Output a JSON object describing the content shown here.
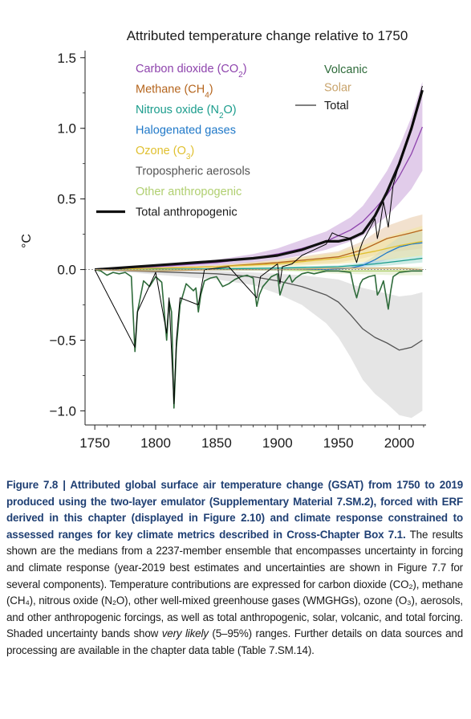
{
  "chart_data": {
    "type": "line",
    "title": "Attributed temperature change relative to 1750",
    "ylabel": "°C",
    "xlabel": "",
    "xlim": [
      1742,
      2022
    ],
    "ylim": [
      -1.1,
      1.55
    ],
    "xticks": [
      "1750",
      "1800",
      "1850",
      "1900",
      "1950",
      "2000"
    ],
    "yticks": [
      "1.5",
      "1.0",
      "0.5",
      "0.0",
      "−0.5",
      "−1.0"
    ],
    "grid": false,
    "legend_placement": "top-left and top-right",
    "series": [
      {
        "name": "Carbon dioxide (CO2)",
        "color": "#8e44ad",
        "band_color": "#c9a3d8",
        "x": [
          1750,
          1800,
          1850,
          1880,
          1900,
          1920,
          1940,
          1960,
          1970,
          1980,
          1990,
          2000,
          2010,
          2019
        ],
        "y": [
          0.0,
          0.02,
          0.05,
          0.08,
          0.11,
          0.15,
          0.2,
          0.28,
          0.34,
          0.43,
          0.53,
          0.66,
          0.82,
          1.01
        ],
        "lo": [
          0.0,
          0.01,
          0.03,
          0.05,
          0.07,
          0.1,
          0.14,
          0.2,
          0.24,
          0.31,
          0.38,
          0.47,
          0.57,
          0.7
        ],
        "hi": [
          0.0,
          0.03,
          0.07,
          0.11,
          0.15,
          0.21,
          0.27,
          0.37,
          0.45,
          0.57,
          0.7,
          0.87,
          1.08,
          1.33
        ]
      },
      {
        "name": "Methane (CH4)",
        "color": "#b5651d",
        "band_color": "#e8c9a6",
        "x": [
          1750,
          1850,
          1900,
          1950,
          1970,
          1980,
          1990,
          2000,
          2010,
          2019
        ],
        "y": [
          0.0,
          0.02,
          0.05,
          0.09,
          0.14,
          0.18,
          0.22,
          0.24,
          0.26,
          0.28
        ],
        "lo": [
          0.0,
          0.01,
          0.03,
          0.05,
          0.08,
          0.1,
          0.12,
          0.13,
          0.14,
          0.15
        ],
        "hi": [
          0.0,
          0.03,
          0.07,
          0.13,
          0.2,
          0.26,
          0.31,
          0.34,
          0.37,
          0.39
        ]
      },
      {
        "name": "Nitrous oxide (N2O)",
        "color": "#1a9c8c",
        "band_color": "#a8dccf",
        "x": [
          1750,
          1850,
          1900,
          1950,
          1980,
          2000,
          2019
        ],
        "y": [
          0.0,
          0.005,
          0.01,
          0.02,
          0.04,
          0.06,
          0.08
        ],
        "lo": [
          0.0,
          0.0,
          0.005,
          0.01,
          0.02,
          0.035,
          0.05
        ],
        "hi": [
          0.0,
          0.01,
          0.02,
          0.03,
          0.06,
          0.09,
          0.11
        ]
      },
      {
        "name": "Halogenated gases",
        "color": "#1f78c8",
        "band_color": "#a6cbe8",
        "x": [
          1750,
          1940,
          1950,
          1960,
          1970,
          1980,
          1990,
          2000,
          2010,
          2019
        ],
        "y": [
          0.0,
          0.0,
          0.005,
          0.01,
          0.03,
          0.07,
          0.12,
          0.16,
          0.18,
          0.19
        ],
        "lo": [
          0.0,
          0.0,
          0.0,
          0.005,
          0.015,
          0.04,
          0.07,
          0.09,
          0.1,
          0.11
        ],
        "hi": [
          0.0,
          0.0,
          0.01,
          0.02,
          0.045,
          0.1,
          0.17,
          0.23,
          0.26,
          0.27
        ]
      },
      {
        "name": "Ozone (O3)",
        "color": "#e0c030",
        "band_color": "#f3e69a",
        "x": [
          1750,
          1850,
          1900,
          1950,
          1980,
          2000,
          2019
        ],
        "y": [
          0.0,
          0.02,
          0.04,
          0.08,
          0.13,
          0.17,
          0.2
        ],
        "lo": [
          0.0,
          0.01,
          0.02,
          0.04,
          0.06,
          0.08,
          0.1
        ],
        "hi": [
          0.0,
          0.03,
          0.06,
          0.12,
          0.2,
          0.26,
          0.31
        ]
      },
      {
        "name": "Tropospheric aerosols",
        "color": "#555555",
        "band_color": "#d0d0d0",
        "x": [
          1750,
          1850,
          1880,
          1900,
          1920,
          1940,
          1950,
          1960,
          1970,
          1980,
          1990,
          2000,
          2010,
          2019
        ],
        "y": [
          0.0,
          -0.03,
          -0.05,
          -0.08,
          -0.12,
          -0.18,
          -0.23,
          -0.32,
          -0.42,
          -0.48,
          -0.52,
          -0.57,
          -0.55,
          -0.5
        ],
        "lo": [
          0.0,
          -0.07,
          -0.11,
          -0.17,
          -0.25,
          -0.38,
          -0.48,
          -0.62,
          -0.78,
          -0.88,
          -0.95,
          -1.03,
          -1.05,
          -1.0
        ],
        "hi": [
          0.0,
          -0.01,
          -0.02,
          -0.03,
          -0.04,
          -0.06,
          -0.07,
          -0.1,
          -0.13,
          -0.15,
          -0.17,
          -0.19,
          -0.18,
          -0.16
        ]
      },
      {
        "name": "Other anthropogenic",
        "color": "#b0cf70",
        "band_color": "#dde9c0",
        "x": [
          1750,
          1900,
          1950,
          2000,
          2019
        ],
        "y": [
          0.0,
          0.0,
          -0.01,
          -0.01,
          -0.01
        ],
        "lo": [
          0.0,
          -0.01,
          -0.03,
          -0.04,
          -0.04
        ],
        "hi": [
          0.0,
          0.01,
          0.01,
          0.02,
          0.02
        ]
      },
      {
        "name": "Total anthropogenic",
        "color": "#111111",
        "x": [
          1750,
          1800,
          1850,
          1880,
          1900,
          1920,
          1940,
          1950,
          1960,
          1970,
          1980,
          1990,
          2000,
          2010,
          2019
        ],
        "y": [
          0.0,
          0.03,
          0.06,
          0.08,
          0.1,
          0.14,
          0.2,
          0.2,
          0.22,
          0.26,
          0.38,
          0.55,
          0.75,
          1.0,
          1.27
        ]
      },
      {
        "name": "Volcanic",
        "color": "#2e6b3a",
        "band_color": "#a9d1b0",
        "x": [
          1750,
          1755,
          1760,
          1765,
          1770,
          1775,
          1780,
          1783,
          1785,
          1790,
          1795,
          1800,
          1805,
          1809,
          1811,
          1813,
          1815,
          1817,
          1820,
          1825,
          1831,
          1833,
          1835,
          1837,
          1840,
          1845,
          1850,
          1855,
          1860,
          1865,
          1870,
          1875,
          1880,
          1883,
          1885,
          1888,
          1890,
          1895,
          1900,
          1902,
          1905,
          1910,
          1912,
          1915,
          1920,
          1925,
          1930,
          1940,
          1950,
          1960,
          1963,
          1965,
          1968,
          1970,
          1975,
          1980,
          1982,
          1984,
          1987,
          1991,
          1993,
          1995,
          2000,
          2010,
          2019
        ],
        "y": [
          0.0,
          -0.01,
          -0.04,
          -0.02,
          -0.03,
          -0.02,
          -0.05,
          -0.58,
          -0.3,
          -0.08,
          -0.12,
          -0.05,
          -0.09,
          -0.5,
          -0.22,
          -0.3,
          -0.98,
          -0.55,
          -0.25,
          -0.1,
          -0.15,
          -0.13,
          -0.3,
          -0.18,
          -0.08,
          -0.06,
          -0.05,
          -0.12,
          -0.1,
          -0.07,
          -0.05,
          -0.04,
          -0.06,
          -0.26,
          -0.18,
          -0.12,
          -0.1,
          -0.05,
          -0.03,
          -0.18,
          -0.1,
          -0.04,
          -0.09,
          -0.06,
          -0.03,
          -0.02,
          -0.03,
          -0.01,
          -0.01,
          -0.02,
          -0.14,
          -0.2,
          -0.1,
          -0.07,
          -0.05,
          -0.04,
          -0.18,
          -0.15,
          -0.08,
          -0.28,
          -0.15,
          -0.05,
          -0.02,
          -0.01,
          -0.01
        ]
      },
      {
        "name": "Solar",
        "color": "#c8a36b",
        "x": [
          1750,
          1800,
          1850,
          1900,
          1950,
          2000,
          2019
        ],
        "y": [
          0.0,
          -0.01,
          0.0,
          0.0,
          0.01,
          0.01,
          0.0
        ]
      },
      {
        "name": "Total",
        "color": "#000000",
        "x": [
          1750,
          1783,
          1785,
          1800,
          1809,
          1811,
          1815,
          1817,
          1820,
          1835,
          1840,
          1860,
          1883,
          1886,
          1900,
          1902,
          1904,
          1912,
          1920,
          1930,
          1940,
          1945,
          1950,
          1960,
          1963,
          1965,
          1968,
          1970,
          1975,
          1980,
          1982,
          1984,
          1987,
          1991,
          1993,
          1995,
          2000,
          2010,
          2019
        ],
        "y": [
          0.0,
          -0.55,
          -0.3,
          -0.02,
          -0.45,
          -0.2,
          -0.95,
          -0.5,
          -0.2,
          -0.25,
          0.0,
          0.02,
          -0.2,
          -0.05,
          0.04,
          -0.1,
          0.02,
          0.04,
          0.1,
          0.14,
          0.18,
          0.26,
          0.24,
          0.22,
          0.1,
          0.05,
          0.15,
          0.2,
          0.28,
          0.36,
          0.22,
          0.3,
          0.48,
          0.3,
          0.45,
          0.6,
          0.75,
          1.0,
          1.3
        ]
      }
    ]
  },
  "caption": {
    "head": "Figure 7.8 | Attributed global surface air temperature change (GSAT) from 1750 to 2019 produced using the two-layer emulator (Supplementary Material 7.SM.2), forced with ERF derived in this chapter (displayed in Figure 2.10) and climate response constrained to assessed ranges for key climate metrics described in Cross-Chapter Box 7.1.",
    "body1": " The results shown are the medians from a 2237-member ensemble that encompasses uncertainty in forcing and climate response (year-2019 best estimates and uncertainties are shown in Figure 7.7 for several components). Temperature contributions are expressed for carbon dioxide (CO₂), methane (CH₄), nitrous oxide (N₂O), other well-mixed greenhouse gases (WMGHGs), ozone (O₃), aerosols, and other anthropogenic forcings, as well as total anthropogenic, solar, volcanic, and total forcing. Shaded uncertainty bands show ",
    "italic": "very likely",
    "body2": " (5–95%) ranges. Further details on data sources and processing are available in the chapter data table (Table 7.SM.14)."
  }
}
